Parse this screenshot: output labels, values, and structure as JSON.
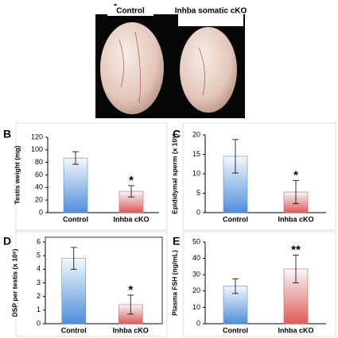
{
  "photo": {
    "panel": "A",
    "labels": [
      "Control",
      "Inhba somatic cKO"
    ]
  },
  "chart_data": [
    {
      "type": "bar",
      "panel": "B",
      "ylabel": "Testis weight (mg)",
      "categories": [
        "Control",
        "Inhba cKO"
      ],
      "values": [
        87,
        34
      ],
      "errors": [
        10,
        9
      ],
      "annotations": [
        null,
        "*"
      ],
      "colors": [
        "#4f8fdc",
        "#e05a55"
      ],
      "ylim": [
        0,
        120
      ],
      "yticks": [
        0,
        20,
        40,
        60,
        80,
        100,
        120
      ]
    },
    {
      "type": "bar",
      "panel": "C",
      "ylabel": "Epididymal sperm (x 10⁶)",
      "categories": [
        "Control",
        "Inhba cKO"
      ],
      "values": [
        14.5,
        5.3
      ],
      "errors": [
        4.3,
        3
      ],
      "annotations": [
        null,
        "*"
      ],
      "colors": [
        "#4f8fdc",
        "#e05a55"
      ],
      "ylim": [
        0,
        20
      ],
      "yticks": [
        0,
        5,
        10,
        15,
        20
      ]
    },
    {
      "type": "bar",
      "panel": "D",
      "ylabel": "DSP per testis (x 10⁶)",
      "categories": [
        "Control",
        "Inhba cKO"
      ],
      "values": [
        4.8,
        1.4
      ],
      "errors": [
        0.8,
        0.7
      ],
      "annotations": [
        null,
        "*"
      ],
      "colors": [
        "#4f8fdc",
        "#e05a55"
      ],
      "ylim": [
        0,
        6
      ],
      "yticks": [
        0,
        1,
        2,
        3,
        4,
        5,
        6
      ]
    },
    {
      "type": "bar",
      "panel": "E",
      "ylabel": "Plasma FSH (ng/mL)",
      "categories": [
        "Control",
        "Inhba cKO"
      ],
      "values": [
        23,
        33.5
      ],
      "errors": [
        4.5,
        8.5
      ],
      "annotations": [
        null,
        "**"
      ],
      "colors": [
        "#4f8fdc",
        "#e05a55"
      ],
      "ylim": [
        0,
        50
      ],
      "yticks": [
        0,
        10,
        20,
        30,
        40,
        50
      ]
    }
  ]
}
